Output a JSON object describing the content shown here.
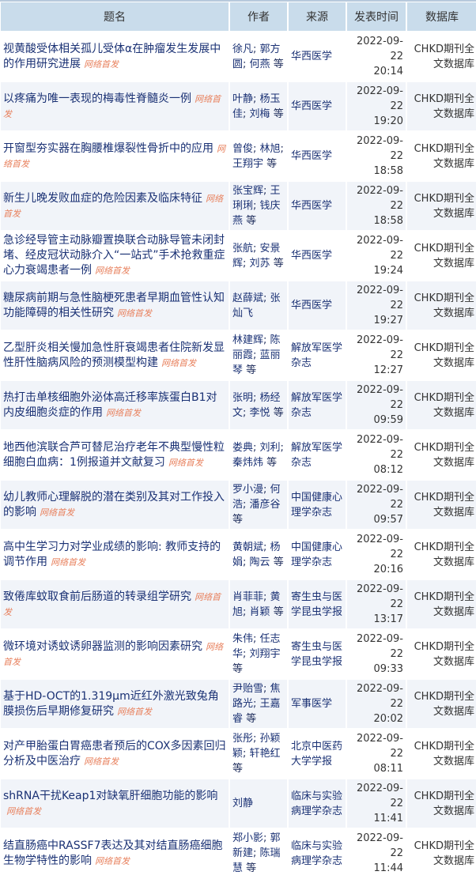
{
  "headers": [
    "题名",
    "作者",
    "来源",
    "发表时间",
    "数据库"
  ],
  "tag_label": "网络首发",
  "colors": {
    "header_bg": "#c9dceb",
    "link": "#1a3174",
    "tag": "#e8825f",
    "row_alt": "#f1f4f9"
  },
  "rows": [
    {
      "title": "视黄酸受体相关孤儿受体α在肿瘤发生发展中的作用研究进展",
      "authors": [
        "徐凡",
        "郭方圆",
        "何燕"
      ],
      "more": "等",
      "source": "华西医学",
      "date": "2022-09-22",
      "time": "20:14",
      "db": "CHKD期刊全文数据库"
    },
    {
      "title": "以疼痛为唯一表现的梅毒性脊髓炎一例",
      "authors": [
        "叶静",
        "杨玉佳",
        "刘梅"
      ],
      "more": "等",
      "source": "华西医学",
      "date": "2022-09-22",
      "time": "19:20",
      "db": "CHKD期刊全文数据库"
    },
    {
      "title": "开窗型夯实器在胸腰椎爆裂性骨折中的应用",
      "authors": [
        "曾俊",
        "林旭",
        "王翔宇"
      ],
      "more": "等",
      "source": "华西医学",
      "date": "2022-09-22",
      "time": "18:58",
      "db": "CHKD期刊全文数据库"
    },
    {
      "title": "新生儿晚发败血症的危险因素及临床特征",
      "authors": [
        "张宝辉",
        "王琍琍",
        "钱庆燕"
      ],
      "more": "等",
      "source": "华西医学",
      "date": "2022-09-22",
      "time": "18:58",
      "db": "CHKD期刊全文数据库"
    },
    {
      "title": "急诊经导管主动脉瓣置换联合动脉导管未闭封堵、经皮冠状动脉介入“一站式”手术抢救重症心力衰竭患者一例",
      "authors": [
        "张航",
        "安景辉",
        "刘苏"
      ],
      "more": "等",
      "source": "华西医学",
      "date": "2022-09-22",
      "time": "19:24",
      "db": "CHKD期刊全文数据库"
    },
    {
      "title": "糖尿病前期与急性脑梗死患者早期血管性认知功能障碍的相关性研究",
      "authors": [
        "赵薛斌",
        "张灿飞"
      ],
      "more": "",
      "source": "华西医学",
      "date": "2022-09-22",
      "time": "19:27",
      "db": "CHKD期刊全文数据库"
    },
    {
      "title": "乙型肝炎相关慢加急性肝衰竭患者住院新发显性肝性脑病风险的预测模型构建",
      "authors": [
        "林建辉",
        "陈丽霞",
        "蓝丽琴"
      ],
      "more": "等",
      "source": "解放军医学杂志",
      "date": "2022-09-22",
      "time": "12:27",
      "db": "CHKD期刊全文数据库"
    },
    {
      "title": "热打击单核细胞外泌体高迁移率族蛋白B1对内皮细胞炎症的作用",
      "authors": [
        "张明",
        "杨经文",
        "李悦"
      ],
      "more": "等",
      "source": "解放军医学杂志",
      "date": "2022-09-22",
      "time": "09:59",
      "db": "CHKD期刊全文数据库"
    },
    {
      "title": "地西他滨联合芦可替尼治疗老年不典型慢性粒细胞白血病：1例报道并文献复习",
      "authors": [
        "娄典",
        "刘利",
        "秦炜炜"
      ],
      "more": "等",
      "source": "解放军医学杂志",
      "date": "2022-09-22",
      "time": "08:12",
      "db": "CHKD期刊全文数据库"
    },
    {
      "title": "幼儿教师心理解脱的潜在类别及其对工作投入的影响",
      "authors": [
        "罗小漫",
        "何浩",
        "潘彦谷"
      ],
      "more": "等",
      "source": "中国健康心理学杂志",
      "date": "2022-09-22",
      "time": "09:57",
      "db": "CHKD期刊全文数据库"
    },
    {
      "title": "高中生学习力对学业成绩的影响: 教师支持的调节作用",
      "authors": [
        "黄朝斌",
        "杨娟",
        "陶云"
      ],
      "more": "等",
      "source": "中国健康心理学杂志",
      "date": "2022-09-22",
      "time": "20:16",
      "db": "CHKD期刊全文数据库"
    },
    {
      "title": "致倦库蚊取食前后肠道的转录组学研究",
      "authors": [
        "肖菲菲",
        "黄旭",
        "肖颖"
      ],
      "more": "等",
      "source": "寄生虫与医学昆虫学报",
      "date": "2022-09-22",
      "time": "13:17",
      "db": "CHKD期刊全文数据库"
    },
    {
      "title": "微环境对诱蚊诱卵器监测的影响因素研究",
      "authors": [
        "朱伟",
        "任志华",
        "刘翔宇"
      ],
      "more": "等",
      "source": "寄生虫与医学昆虫学报",
      "date": "2022-09-22",
      "time": "09:33",
      "db": "CHKD期刊全文数据库"
    },
    {
      "title": "基于HD-OCT的1.319μm近红外激光致兔角膜损伤后早期修复研究",
      "authors": [
        "尹贻雪",
        "焦路光",
        "王嘉睿"
      ],
      "more": "等",
      "source": "军事医学",
      "date": "2022-09-22",
      "time": "20:02",
      "db": "CHKD期刊全文数据库"
    },
    {
      "title": "对产甲胎蛋白胃癌患者预后的COX多因素回归分析及中医治疗",
      "authors": [
        "张彤",
        "孙颖颖",
        "轩艳红"
      ],
      "more": "等",
      "source": "北京中医药大学学报",
      "date": "2022-09-22",
      "time": "08:11",
      "db": "CHKD期刊全文数据库"
    },
    {
      "title": "shRNA干扰Keap1对缺氧肝细胞功能的影响",
      "authors": [
        "刘静"
      ],
      "more": "",
      "source": "临床与实验病理学杂志",
      "date": "2022-09-22",
      "time": "11:41",
      "db": "CHKD期刊全文数据库"
    },
    {
      "title": "结直肠癌中RASSF7表达及其对结直肠癌细胞生物学特性的影响",
      "authors": [
        "郑小影",
        "郭新建",
        "陈瑞慧"
      ],
      "more": "等",
      "source": "临床与实验病理学杂志",
      "date": "2022-09-22",
      "time": "11:44",
      "db": "CHKD期刊全文数据库"
    }
  ]
}
